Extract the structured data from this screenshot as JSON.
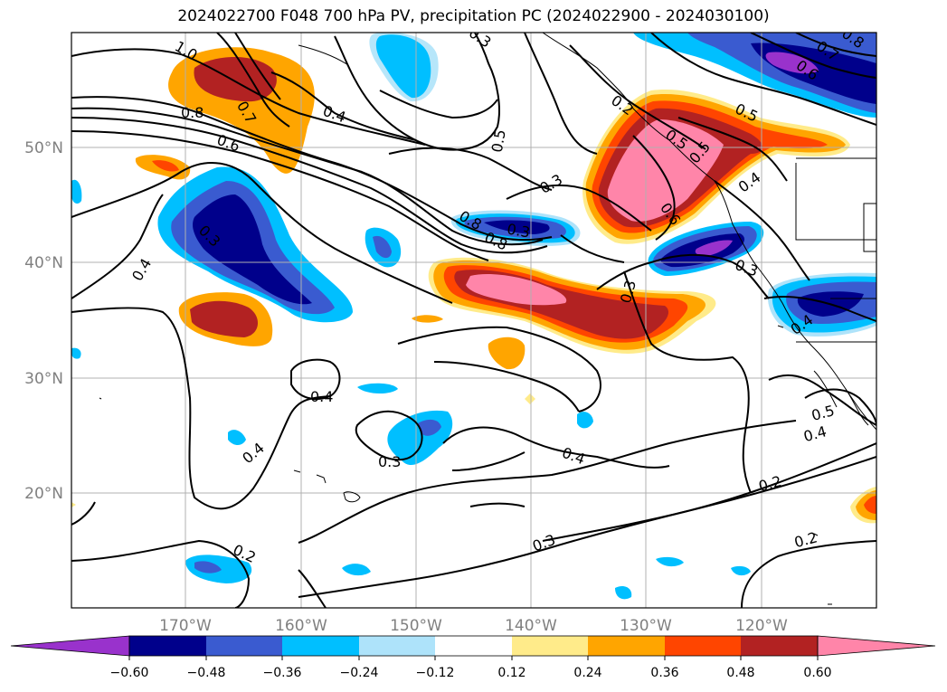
{
  "title": "2024022700 F048 700 hPa PV, precipitation PC (2024022900 - 2024030100)",
  "map": {
    "lon_labels": [
      "170°W",
      "160°W",
      "150°W",
      "140°W",
      "130°W",
      "120°W"
    ],
    "lat_labels": [
      "50°N",
      "40°N",
      "30°N",
      "20°N"
    ],
    "contour_labels": [
      "1.0",
      "0.8",
      "0.7",
      "0.6",
      "0.4",
      "0.5",
      "0.3",
      "0.4",
      "0.3",
      "0.8",
      "0.4",
      "0.3",
      "0.4",
      "0.3",
      "0.2",
      "0.3",
      "0.4",
      "0.2",
      "0.2",
      "0.3",
      "0.4",
      "0.5",
      "0.6",
      "0.7",
      "0.8",
      "0.6",
      "0.5",
      "0.3",
      "0.2",
      "0.5",
      "0.4",
      "0.4",
      "0.8",
      "0.5",
      "0.3"
    ]
  },
  "colorbar": {
    "ticks": [
      "−0.60",
      "−0.48",
      "−0.36",
      "−0.24",
      "−0.12",
      "0.12",
      "0.24",
      "0.36",
      "0.48",
      "0.60"
    ],
    "colors": [
      "#9932cc",
      "#00008b",
      "#3a5bd0",
      "#00bfff",
      "#aee3fa",
      "#ffffff",
      "#ffeb8a",
      "#ffa500",
      "#ff4500",
      "#b22222",
      "#ff85a9",
      "#ff85a9"
    ]
  },
  "colors": {
    "purple": "#9932cc",
    "navy": "#00008b",
    "blue": "#3a5bd0",
    "cyan": "#00bfff",
    "lightcyan": "#aee3fa",
    "yellow": "#ffeb8a",
    "orange": "#ffa500",
    "redorange": "#ff4500",
    "darkred": "#b22222",
    "pink": "#ff85a9"
  }
}
